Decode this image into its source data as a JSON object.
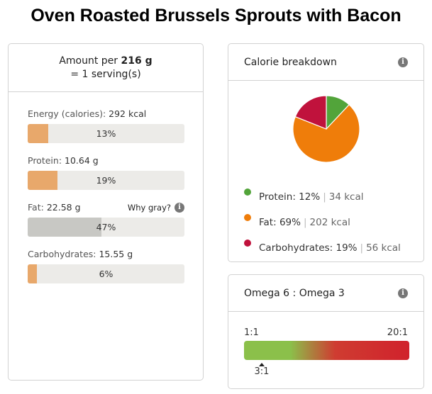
{
  "page_title": "Oven Roasted Brussels Sprouts with Bacon",
  "amount": {
    "prefix": "Amount per",
    "weight": "216 g",
    "serving": "= 1 serving(s)"
  },
  "nutrients": [
    {
      "label": "Energy (calories):",
      "value": "292 kcal",
      "percent": 13,
      "percent_label": "13%",
      "color": "#e8a86b"
    },
    {
      "label": "Protein:",
      "value": "10.64 g",
      "percent": 19,
      "percent_label": "19%",
      "color": "#e8a86b"
    },
    {
      "label": "Fat:",
      "value": "22.58 g",
      "percent": 47,
      "percent_label": "47%",
      "color": "#c8c8c4"
    },
    {
      "label": "Carbohydrates:",
      "value": "15.55 g",
      "percent": 6,
      "percent_label": "6%",
      "color": "#e8a86b"
    }
  ],
  "why_gray": "Why gray?",
  "calorie_card": {
    "title": "Calorie breakdown",
    "legend": [
      {
        "name": "Protein:",
        "pct": "12%",
        "kcal": "34 kcal",
        "value": 12,
        "color": "#52a43a"
      },
      {
        "name": "Fat:",
        "pct": "69%",
        "kcal": "202 kcal",
        "value": 69,
        "color": "#ef7d0a"
      },
      {
        "name": "Carbohydrates:",
        "pct": "19%",
        "kcal": "56 kcal",
        "value": 19,
        "color": "#c0123c"
      }
    ]
  },
  "omega_card": {
    "title": "Omega 6 : Omega 3",
    "min_label": "1:1",
    "max_label": "20:1",
    "value_label": "3:1",
    "value": 3,
    "min": 1,
    "max": 20
  },
  "colors": {
    "bar_fill": "#e8a86b",
    "bar_gray": "#c8c8c4",
    "bar_track": "#ecebe8"
  }
}
